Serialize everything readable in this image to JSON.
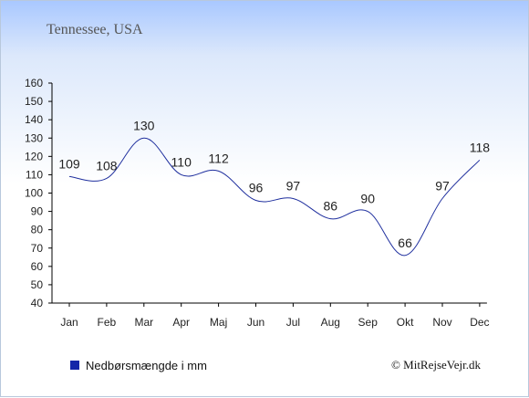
{
  "chart_data": {
    "type": "line",
    "title": "Tennessee, USA",
    "categories": [
      "Jan",
      "Feb",
      "Mar",
      "Apr",
      "Maj",
      "Jun",
      "Jul",
      "Aug",
      "Sep",
      "Okt",
      "Nov",
      "Dec"
    ],
    "series": [
      {
        "name": "Nedbørsmængde i mm",
        "values": [
          109,
          108,
          130,
          110,
          112,
          96,
          97,
          86,
          90,
          66,
          97,
          118
        ]
      }
    ],
    "ylim": [
      40,
      160
    ],
    "yticks": [
      40,
      50,
      60,
      70,
      80,
      90,
      100,
      110,
      120,
      130,
      140,
      150,
      160
    ],
    "legend": "bottom-left",
    "grid": false,
    "line_color": "#1f2f9e",
    "legend_color": "#1426a8",
    "credit": "© MitRejseVejr.dk"
  }
}
